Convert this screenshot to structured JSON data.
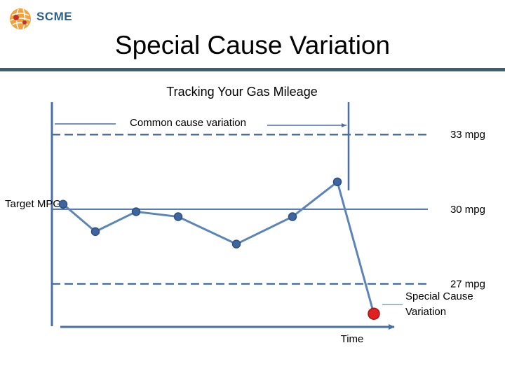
{
  "logo": {
    "name": "SCME",
    "tagline": ""
  },
  "slide": {
    "title": "Special Cause Variation"
  },
  "chart_data": {
    "type": "line",
    "title": "Tracking Your Gas Mileage",
    "xlabel": "Time",
    "ylabel": "Target MPG",
    "y_unit": "mpg",
    "ylim": [
      25.3,
      34.3
    ],
    "reference_lines": [
      {
        "label": "33 mpg",
        "value": 33,
        "style": "dashed"
      },
      {
        "label": "30 mpg",
        "value": 30,
        "style": "solid"
      },
      {
        "label": "27 mpg",
        "value": 27,
        "style": "dashed"
      }
    ],
    "x": [
      1,
      2,
      3,
      4,
      5,
      6,
      7,
      8
    ],
    "series": [
      {
        "name": "",
        "values": [
          30.2,
          29.1,
          29.9,
          29.7,
          28.6,
          29.7,
          31.1,
          25.8
        ],
        "color": "#4a78b5"
      }
    ],
    "special_point": {
      "index": 7,
      "value": 25.8,
      "color": "#e02020"
    },
    "annotations": {
      "common_cause": "Common cause variation",
      "special_cause_line1": "Special Cause",
      "special_cause_line2": "Variation"
    },
    "colors": {
      "line": "#5b85b8",
      "marker": "#3d65a0",
      "special": "#e02020",
      "axis": "#4a6fa5",
      "ref": "#4a6fa5"
    }
  }
}
